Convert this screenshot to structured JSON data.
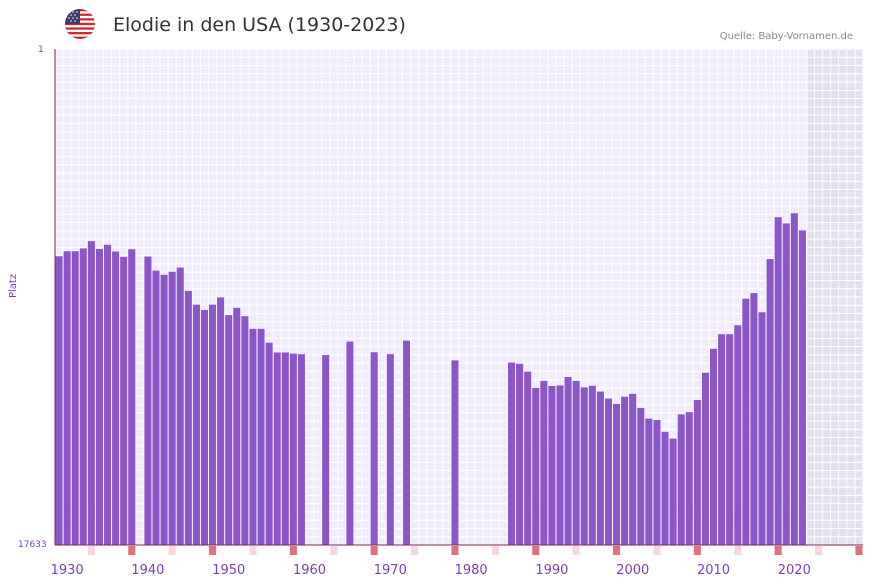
{
  "header": {
    "title": "Elodie in den USA (1930-2023)",
    "source": "Quelle: Baby-Vornamen.de",
    "flag_icon": "us-flag-icon"
  },
  "chart_data": {
    "type": "bar",
    "title": "Elodie in den USA (1930-2023)",
    "ylabel": "Platz",
    "y_top_label": "1",
    "y_bottom_label": "17633",
    "ylim": [
      1,
      17633
    ],
    "x_tick_labels": [
      "1930",
      "1940",
      "1950",
      "1960",
      "1970",
      "1980",
      "1990",
      "2000",
      "2010",
      "2020"
    ],
    "x_range": [
      1929,
      2028
    ],
    "data_end_year": 2022,
    "bar_color": "#8c56c9",
    "shaded_region": "2023-2028",
    "ranks": [
      {
        "year": 1929,
        "rank": 7370
      },
      {
        "year": 1930,
        "rank": 7190
      },
      {
        "year": 1931,
        "rank": 7190
      },
      {
        "year": 1932,
        "rank": 7090
      },
      {
        "year": 1933,
        "rank": 6830
      },
      {
        "year": 1934,
        "rank": 7110
      },
      {
        "year": 1935,
        "rank": 6960
      },
      {
        "year": 1936,
        "rank": 7200
      },
      {
        "year": 1937,
        "rank": 7390
      },
      {
        "year": 1938,
        "rank": 7120
      },
      {
        "year": 1940,
        "rank": 7380
      },
      {
        "year": 1941,
        "rank": 7880
      },
      {
        "year": 1942,
        "rank": 8030
      },
      {
        "year": 1943,
        "rank": 7920
      },
      {
        "year": 1944,
        "rank": 7770
      },
      {
        "year": 1945,
        "rank": 8600
      },
      {
        "year": 1946,
        "rank": 9090
      },
      {
        "year": 1947,
        "rank": 9280
      },
      {
        "year": 1948,
        "rank": 9090
      },
      {
        "year": 1949,
        "rank": 8830
      },
      {
        "year": 1950,
        "rank": 9460
      },
      {
        "year": 1951,
        "rank": 9200
      },
      {
        "year": 1952,
        "rank": 9500
      },
      {
        "year": 1953,
        "rank": 9950
      },
      {
        "year": 1954,
        "rank": 9950
      },
      {
        "year": 1955,
        "rank": 10440
      },
      {
        "year": 1956,
        "rank": 10790
      },
      {
        "year": 1957,
        "rank": 10790
      },
      {
        "year": 1958,
        "rank": 10830
      },
      {
        "year": 1959,
        "rank": 10850
      },
      {
        "year": 1962,
        "rank": 10880
      },
      {
        "year": 1965,
        "rank": 10400
      },
      {
        "year": 1968,
        "rank": 10780
      },
      {
        "year": 1970,
        "rank": 10850
      },
      {
        "year": 1972,
        "rank": 10370
      },
      {
        "year": 1978,
        "rank": 11070
      },
      {
        "year": 1985,
        "rank": 11150
      },
      {
        "year": 1986,
        "rank": 11190
      },
      {
        "year": 1987,
        "rank": 11470
      },
      {
        "year": 1988,
        "rank": 12050
      },
      {
        "year": 1989,
        "rank": 11800
      },
      {
        "year": 1990,
        "rank": 11980
      },
      {
        "year": 1991,
        "rank": 11960
      },
      {
        "year": 1992,
        "rank": 11660
      },
      {
        "year": 1993,
        "rank": 11800
      },
      {
        "year": 1994,
        "rank": 12030
      },
      {
        "year": 1995,
        "rank": 11970
      },
      {
        "year": 1996,
        "rank": 12180
      },
      {
        "year": 1997,
        "rank": 12430
      },
      {
        "year": 1998,
        "rank": 12620
      },
      {
        "year": 1999,
        "rank": 12360
      },
      {
        "year": 2000,
        "rank": 12260
      },
      {
        "year": 2001,
        "rank": 12760
      },
      {
        "year": 2002,
        "rank": 13140
      },
      {
        "year": 2003,
        "rank": 13190
      },
      {
        "year": 2004,
        "rank": 13610
      },
      {
        "year": 2005,
        "rank": 13850
      },
      {
        "year": 2006,
        "rank": 12990
      },
      {
        "year": 2007,
        "rank": 12910
      },
      {
        "year": 2008,
        "rank": 12480
      },
      {
        "year": 2009,
        "rank": 11510
      },
      {
        "year": 2010,
        "rank": 10660
      },
      {
        "year": 2011,
        "rank": 10140
      },
      {
        "year": 2012,
        "rank": 10140
      },
      {
        "year": 2013,
        "rank": 9820
      },
      {
        "year": 2014,
        "rank": 8880
      },
      {
        "year": 2015,
        "rank": 8680
      },
      {
        "year": 2016,
        "rank": 9360
      },
      {
        "year": 2017,
        "rank": 7470
      },
      {
        "year": 2018,
        "rank": 5980
      },
      {
        "year": 2019,
        "rank": 6200
      },
      {
        "year": 2020,
        "rank": 5840
      },
      {
        "year": 2021,
        "rank": 6450
      }
    ]
  }
}
